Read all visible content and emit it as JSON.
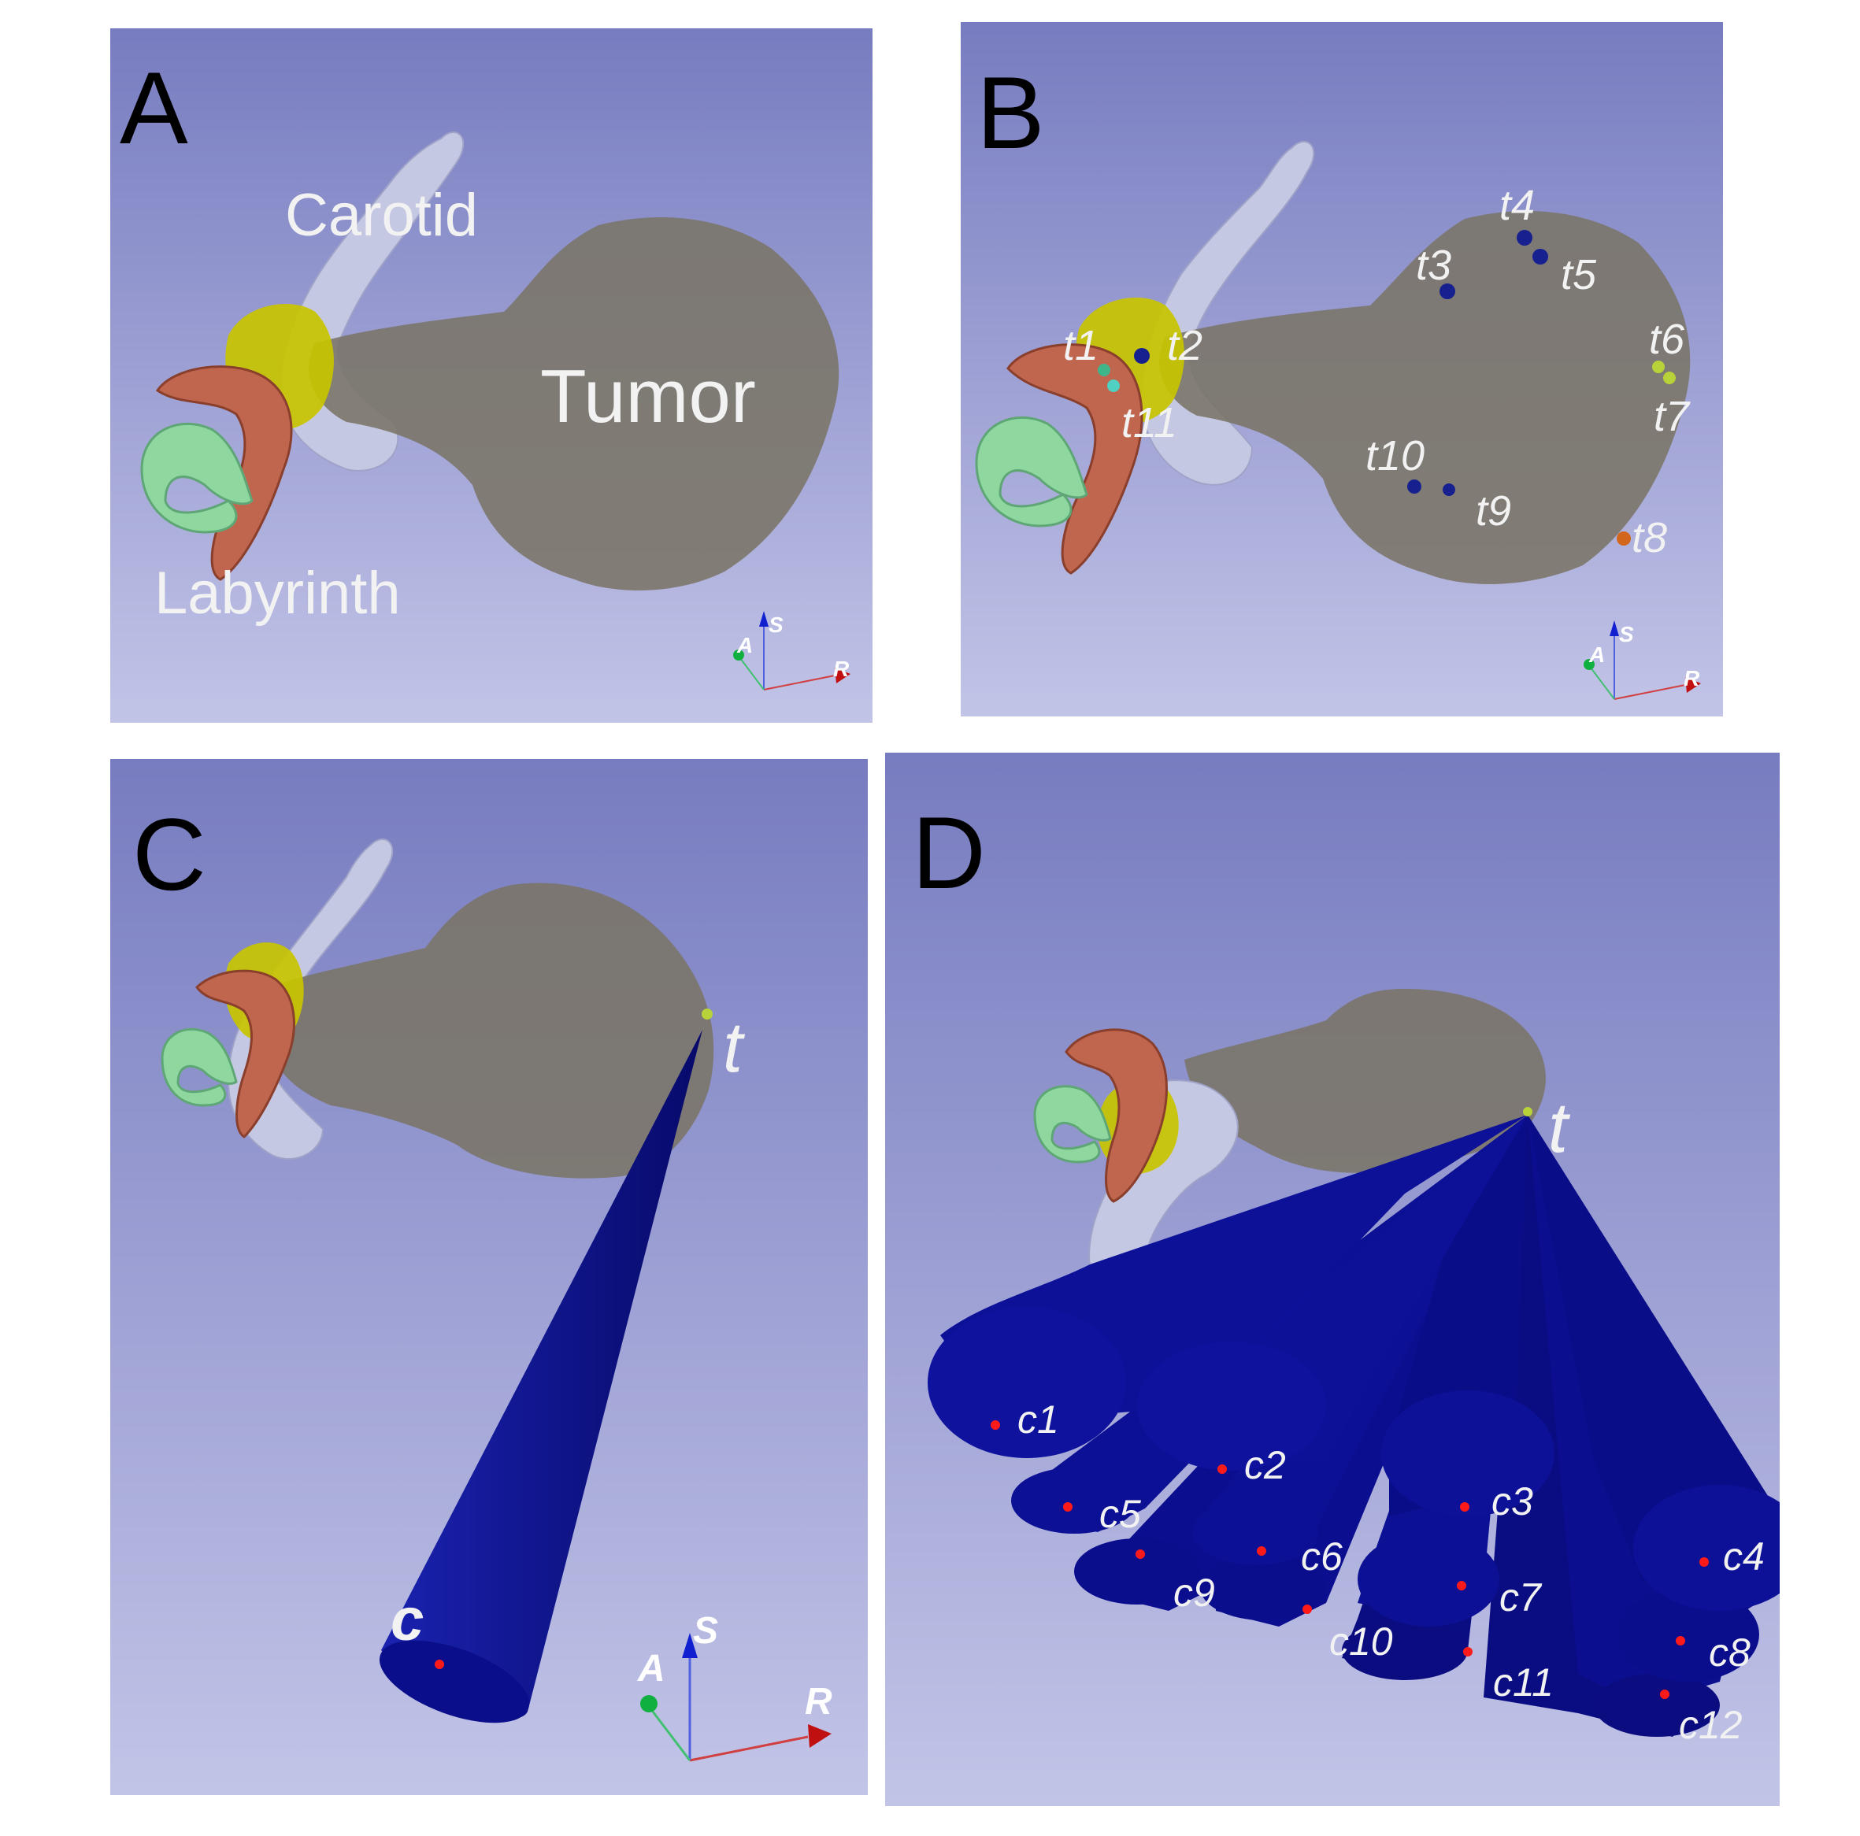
{
  "panels": {
    "a": {
      "letter": "A",
      "labels": {
        "carotid": "Carotid",
        "tumor": "Tumor",
        "labyrinth": "Labyrinth"
      },
      "axes": {
        "anterior": "A",
        "superior": "S",
        "right": "R"
      }
    },
    "b": {
      "letter": "B",
      "targets": [
        "t1",
        "t2",
        "t3",
        "t4",
        "t5",
        "t6",
        "t7",
        "t8",
        "t9",
        "t10",
        "t11"
      ],
      "axes": {
        "anterior": "A",
        "superior": "S",
        "right": "R"
      }
    },
    "c": {
      "letter": "C",
      "target_label": "t",
      "entry_label": "c",
      "axes": {
        "anterior": "A",
        "superior": "S",
        "right": "R"
      }
    },
    "d": {
      "letter": "D",
      "target_label": "t",
      "entries": [
        "c1",
        "c2",
        "c3",
        "c4",
        "c5",
        "c6",
        "c7",
        "c8",
        "c9",
        "c10",
        "c11",
        "c12"
      ]
    }
  },
  "colors": {
    "background_top": "#7a7fc2",
    "background_bottom": "#c1c3e6",
    "tumor": "#7a7466",
    "carotid": "#c5c8e2",
    "cochlea": "#c8c400",
    "labyrinth_red": "#c0664e",
    "labyrinth_green": "#8ed8a0",
    "trajectory": "#0b0e8a",
    "entry_point": "#ff1a1a"
  }
}
